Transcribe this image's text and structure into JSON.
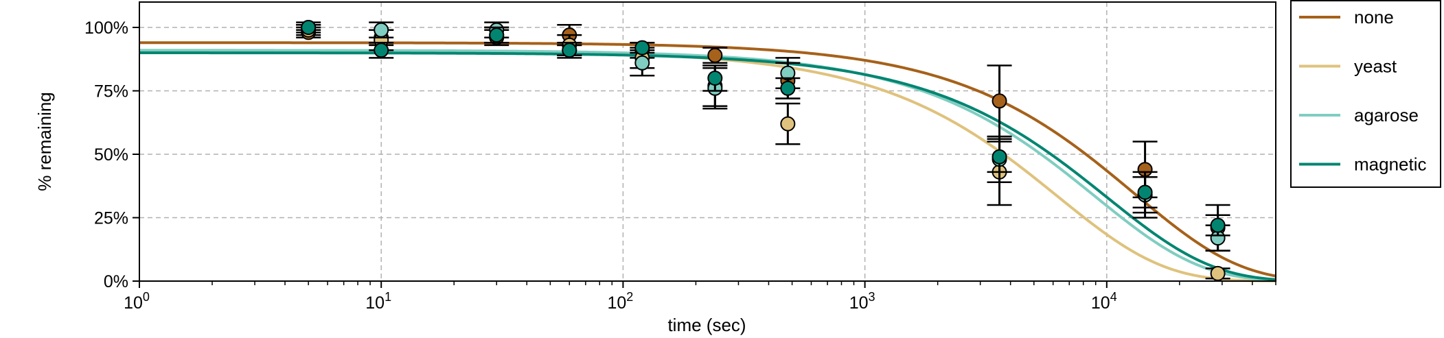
{
  "chart_data": {
    "type": "scatter",
    "title": "",
    "xlabel": "time (sec)",
    "ylabel": "% remaining",
    "xscale": "log",
    "xlim": [
      1,
      50000
    ],
    "ylim": [
      0,
      110
    ],
    "grid": true,
    "legend_position": "outside-right",
    "x_ticks": [
      {
        "value": 1,
        "base": "10",
        "exp": "0"
      },
      {
        "value": 10,
        "base": "10",
        "exp": "1"
      },
      {
        "value": 100,
        "base": "10",
        "exp": "2"
      },
      {
        "value": 1000,
        "base": "10",
        "exp": "3"
      },
      {
        "value": 10000,
        "base": "10",
        "exp": "4"
      }
    ],
    "y_ticks": [
      {
        "value": 0,
        "label": "0%"
      },
      {
        "value": 25,
        "label": "25%"
      },
      {
        "value": 50,
        "label": "50%"
      },
      {
        "value": 75,
        "label": "75%"
      },
      {
        "value": 100,
        "label": "100%"
      }
    ],
    "series": [
      {
        "name": "none",
        "color": "#a6611a",
        "fit": {
          "plateau": 94,
          "k": 7.7e-05
        },
        "points": [
          {
            "x": 5,
            "y": 98,
            "err": 2
          },
          {
            "x": 10,
            "y": 96,
            "err": 3
          },
          {
            "x": 30,
            "y": 96,
            "err": 3
          },
          {
            "x": 60,
            "y": 97,
            "err": 4
          },
          {
            "x": 120,
            "y": 91,
            "err": 3
          },
          {
            "x": 240,
            "y": 89,
            "err": 3
          },
          {
            "x": 480,
            "y": 79,
            "err": 7
          },
          {
            "x": 3600,
            "y": 71,
            "err": 14
          },
          {
            "x": 14400,
            "y": 44,
            "err": 11
          },
          {
            "x": 28800,
            "y": 21,
            "err": 9
          }
        ]
      },
      {
        "name": "yeast",
        "color": "#dfc27d",
        "fit": {
          "plateau": 91,
          "k": 0.00016
        },
        "points": [
          {
            "x": 5,
            "y": 99,
            "err": 2
          },
          {
            "x": 10,
            "y": 95,
            "err": 4
          },
          {
            "x": 30,
            "y": 97,
            "err": 3
          },
          {
            "x": 60,
            "y": 93,
            "err": 4
          },
          {
            "x": 120,
            "y": 88,
            "err": 4
          },
          {
            "x": 240,
            "y": 77,
            "err": 8
          },
          {
            "x": 480,
            "y": 62,
            "err": 8
          },
          {
            "x": 3600,
            "y": 43,
            "err": 13
          },
          {
            "x": 14400,
            "y": 34,
            "err": 9
          },
          {
            "x": 28800,
            "y": 3,
            "err": 2
          }
        ]
      },
      {
        "name": "agarose",
        "color": "#80cdc1",
        "fit": {
          "plateau": 91,
          "k": 0.000112
        },
        "points": [
          {
            "x": 5,
            "y": 100,
            "err": 2
          },
          {
            "x": 10,
            "y": 99,
            "err": 3
          },
          {
            "x": 30,
            "y": 99,
            "err": 3
          },
          {
            "x": 60,
            "y": 91,
            "err": 3
          },
          {
            "x": 120,
            "y": 86,
            "err": 5
          },
          {
            "x": 240,
            "y": 76,
            "err": 8
          },
          {
            "x": 480,
            "y": 82,
            "err": 6
          },
          {
            "x": 3600,
            "y": 48,
            "err": 9
          },
          {
            "x": 14400,
            "y": 34,
            "err": 7
          },
          {
            "x": 28800,
            "y": 17,
            "err": 5
          }
        ]
      },
      {
        "name": "magnetic",
        "color": "#018571",
        "fit": {
          "plateau": 90,
          "k": 0.0001
        },
        "points": [
          {
            "x": 5,
            "y": 100,
            "err": 1
          },
          {
            "x": 10,
            "y": 91,
            "err": 3
          },
          {
            "x": 30,
            "y": 97,
            "err": 3
          },
          {
            "x": 60,
            "y": 91,
            "err": 2
          },
          {
            "x": 120,
            "y": 92,
            "err": 2
          },
          {
            "x": 240,
            "y": 80,
            "err": 5
          },
          {
            "x": 480,
            "y": 76,
            "err": 4
          },
          {
            "x": 3600,
            "y": 49,
            "err": 6
          },
          {
            "x": 14400,
            "y": 35,
            "err": 6
          },
          {
            "x": 28800,
            "y": 22,
            "err": 4
          }
        ]
      }
    ]
  }
}
